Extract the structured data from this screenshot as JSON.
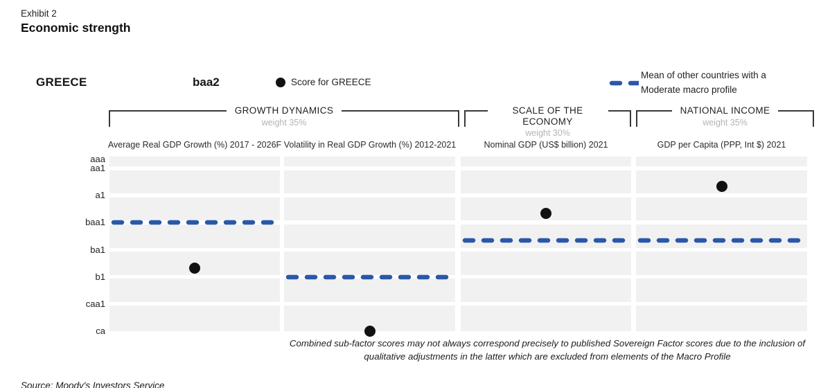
{
  "exhibit": {
    "label": "Exhibit 2",
    "title": "Economic strength"
  },
  "country": {
    "name": "GREECE",
    "score": "baa2"
  },
  "legend": {
    "score_label": "Score for GREECE",
    "mean_label": "Mean of other countries with a Moderate macro profile"
  },
  "groups": [
    {
      "title": "GROWTH DYNAMICS",
      "weight": "weight 35%"
    },
    {
      "title": "SCALE OF THE ECONOMY",
      "weight": "weight 30%"
    },
    {
      "title": "NATIONAL INCOME",
      "weight": "weight 35%"
    }
  ],
  "axis": {
    "labels": [
      "aaa",
      "aa1",
      "a1",
      "baa1",
      "ba1",
      "b1",
      "caa1",
      "ca"
    ]
  },
  "colors": {
    "accent_blue": "#2A58A9",
    "score_dot": "#111111"
  },
  "chart_data": {
    "type": "scatter",
    "title": "Economic strength",
    "y_scale_top_to_bottom": [
      "aaa",
      "aa1",
      "aa2",
      "aa3",
      "a1",
      "a2",
      "a3",
      "baa1",
      "baa2",
      "baa3",
      "ba1",
      "ba2",
      "ba3",
      "b1",
      "b2",
      "b3",
      "caa1",
      "caa2",
      "caa3",
      "ca"
    ],
    "y_axis_shown_ticks": [
      "aaa",
      "aa1",
      "a1",
      "baa1",
      "ba1",
      "b1",
      "caa1",
      "ca"
    ],
    "legend_position": "top",
    "grid": "horizontal striped bands",
    "columns": [
      {
        "group": "GROWTH DYNAMICS",
        "group_weight": "weight 35%",
        "label": "Average Real GDP Growth (%) 2017 - 2026F",
        "greece_score": "ba3",
        "mean_moderate_profile": "baa1"
      },
      {
        "group": "GROWTH DYNAMICS",
        "group_weight": "weight 35%",
        "label": "Volatility in Real GDP Growth (%) 2012-2021",
        "greece_score": "ca",
        "mean_moderate_profile": "b1"
      },
      {
        "group": "SCALE OF THE ECONOMY",
        "group_weight": "weight 30%",
        "label": "Nominal GDP (US$ billion) 2021",
        "greece_score": "a3",
        "mean_moderate_profile": "baa3"
      },
      {
        "group": "NATIONAL INCOME",
        "group_weight": "weight 35%",
        "label": "GDP per Capita (PPP, Int $) 2021",
        "greece_score": "aa3",
        "mean_moderate_profile": "baa3"
      }
    ]
  },
  "footnote": "Combined sub-factor scores may not always correspond precisely to published Sovereign Factor scores due to the inclusion of qualitative adjustments in the latter which are excluded from elements of the Macro Profile",
  "source": "Source: Moody's Investors Service"
}
